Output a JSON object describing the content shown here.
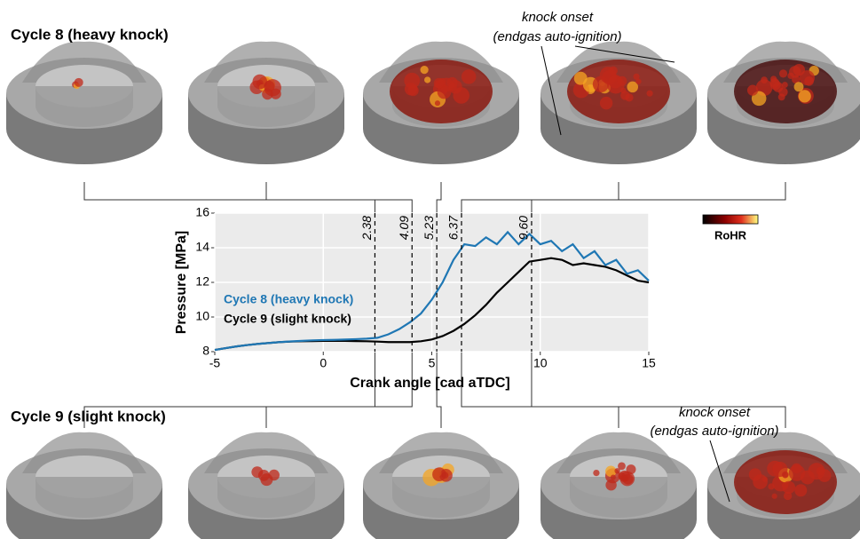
{
  "chart_data": {
    "type": "line",
    "x": [
      -5,
      -4.5,
      -4,
      -3.5,
      -3,
      -2.5,
      -2,
      -1.5,
      -1,
      -0.5,
      0,
      0.5,
      1,
      1.5,
      2,
      2.5,
      3,
      3.5,
      4,
      4.5,
      5,
      5.5,
      6,
      6.5,
      7,
      7.5,
      8,
      8.5,
      9,
      9.5,
      10,
      10.5,
      11,
      11.5,
      12,
      12.5,
      13,
      13.5,
      14,
      14.5,
      15
    ],
    "series": [
      {
        "name": "Cycle 8 (heavy knock)",
        "color": "#1f77b4",
        "values": [
          8.1,
          8.2,
          8.3,
          8.38,
          8.45,
          8.5,
          8.55,
          8.59,
          8.62,
          8.65,
          8.67,
          8.68,
          8.7,
          8.72,
          8.75,
          8.8,
          9.0,
          9.3,
          9.7,
          10.2,
          11.0,
          12.0,
          13.3,
          14.2,
          14.1,
          14.6,
          14.2,
          14.9,
          14.2,
          14.8,
          14.2,
          14.4,
          13.8,
          14.2,
          13.4,
          13.8,
          13.0,
          13.3,
          12.5,
          12.7,
          12.1
        ]
      },
      {
        "name": "Cycle 9 (slight knock)",
        "color": "#000000",
        "values": [
          8.1,
          8.2,
          8.3,
          8.38,
          8.45,
          8.5,
          8.55,
          8.58,
          8.6,
          8.61,
          8.62,
          8.62,
          8.62,
          8.61,
          8.6,
          8.58,
          8.55,
          8.55,
          8.55,
          8.6,
          8.7,
          8.9,
          9.2,
          9.6,
          10.1,
          10.7,
          11.4,
          12.0,
          12.6,
          13.2,
          13.3,
          13.4,
          13.3,
          13.0,
          13.1,
          13.0,
          12.9,
          12.7,
          12.4,
          12.1,
          12.0
        ]
      }
    ],
    "xlim": [
      -5,
      15
    ],
    "ylim": [
      8,
      16
    ],
    "xticks": [
      -5,
      0,
      5,
      10,
      15
    ],
    "yticks": [
      8,
      10,
      12,
      14,
      16
    ],
    "xlabel": "Crank angle [cad aTDC]",
    "ylabel": "Pressure [MPa]",
    "grid": true,
    "markers": [
      2.38,
      4.09,
      5.23,
      6.37,
      {
        "value": 9.6,
        "label": "9.60"
      }
    ],
    "colorbar_label": "RoHR",
    "annotations": [
      [
        "knock onset",
        "(endgas auto-ignition)"
      ],
      [
        "knock onset",
        "(endgas auto-ignition)"
      ]
    ]
  }
}
